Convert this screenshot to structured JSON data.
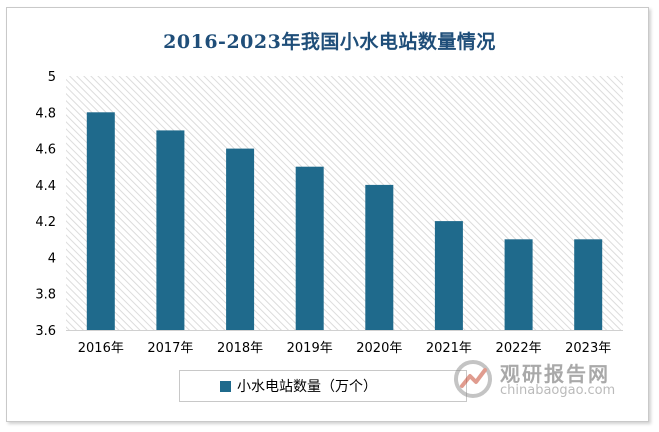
{
  "colors": {
    "bar": "#1f6a8c",
    "title": "#1f4e79"
  },
  "chart_data": {
    "type": "bar",
    "title": "2016-2023年我国小水电站数量情况",
    "categories": [
      "2016年",
      "2017年",
      "2018年",
      "2019年",
      "2020年",
      "2021年",
      "2022年",
      "2023年"
    ],
    "series": [
      {
        "name": "小水电站数量（万个）",
        "values": [
          4.8,
          4.7,
          4.6,
          4.5,
          4.4,
          4.2,
          4.1,
          4.1
        ]
      }
    ],
    "yticks": [
      "3.6",
      "3.8",
      "4",
      "4.2",
      "4.4",
      "4.6",
      "4.8",
      "5"
    ],
    "ylim": [
      3.6,
      5
    ],
    "xlabel": "",
    "ylabel": "",
    "legend_position": "bottom",
    "grid": false,
    "plot_background": "diagonal-hatch"
  },
  "watermark": {
    "name": "观研报告网",
    "url": "chinabaogao.com",
    "icon": "chart-logo-icon"
  }
}
